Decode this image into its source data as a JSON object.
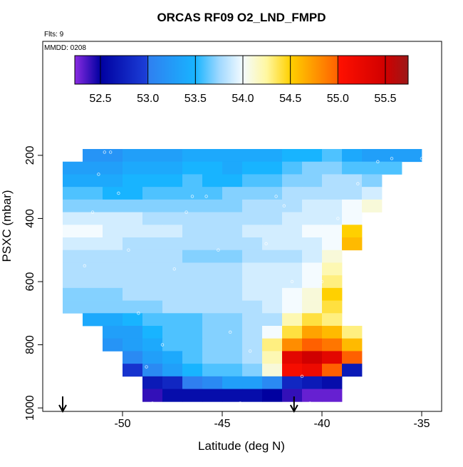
{
  "chart_data": {
    "type": "heatmap",
    "title": "ORCAS RF09 O2_LND_FMPD",
    "subtitle": "Flts: 9",
    "annotation": "MMDD: 0208",
    "x_label": "Latitude (deg N)",
    "y_label": "PSXC (mbar)",
    "xlim": [
      -54,
      -34
    ],
    "ylim": [
      1011,
      -161
    ],
    "xticks": [
      -50,
      -45,
      -40,
      -35
    ],
    "yticks": [
      200,
      400,
      600,
      800,
      1000
    ],
    "x_edges": [
      -53,
      -52,
      -51,
      -50,
      -49,
      -48,
      -47,
      -46,
      -45,
      -44,
      -43,
      -42,
      -41,
      -40,
      -39,
      -38,
      -37,
      -36,
      -35
    ],
    "y_edges": [
      180,
      220,
      260,
      300,
      340,
      380,
      420,
      460,
      500,
      540,
      580,
      620,
      660,
      700,
      740,
      780,
      820,
      860,
      900,
      940,
      980
    ],
    "z": [
      [
        null,
        53.2,
        53.2,
        53.3,
        53.3,
        53.3,
        53.4,
        53.4,
        53.4,
        53.4,
        53.4,
        53.5,
        53.5,
        53.6,
        53.4,
        53.3,
        53.3,
        53.3
      ],
      [
        53.3,
        53.3,
        53.3,
        53.4,
        53.4,
        53.4,
        53.5,
        53.5,
        53.4,
        53.5,
        53.5,
        53.6,
        53.7,
        53.7,
        53.6,
        53.6,
        53.6,
        null
      ],
      [
        53.4,
        53.4,
        53.4,
        53.5,
        53.5,
        53.5,
        53.6,
        53.5,
        53.5,
        53.6,
        53.6,
        53.7,
        53.7,
        53.8,
        53.8,
        53.7,
        null,
        null
      ],
      [
        53.6,
        53.6,
        53.5,
        53.5,
        53.6,
        53.6,
        53.6,
        53.6,
        53.7,
        53.7,
        53.7,
        53.8,
        53.8,
        53.8,
        53.8,
        53.9,
        null,
        null
      ],
      [
        53.7,
        53.7,
        53.7,
        53.7,
        53.7,
        53.7,
        53.7,
        53.7,
        53.7,
        53.8,
        53.8,
        53.8,
        53.9,
        53.9,
        54.0,
        54.1,
        null,
        null
      ],
      [
        53.9,
        53.9,
        53.9,
        53.9,
        53.8,
        53.8,
        53.8,
        53.8,
        53.8,
        53.8,
        53.8,
        53.9,
        53.9,
        53.9,
        54.0,
        null,
        null,
        null
      ],
      [
        54.0,
        54.0,
        53.9,
        53.9,
        53.9,
        53.9,
        53.8,
        53.8,
        53.8,
        53.9,
        53.9,
        53.9,
        54.0,
        54.0,
        54.5,
        null,
        null,
        null
      ],
      [
        53.9,
        53.9,
        53.9,
        53.8,
        53.8,
        53.8,
        53.8,
        53.8,
        53.8,
        53.8,
        53.9,
        53.9,
        53.9,
        54.0,
        54.6,
        null,
        null,
        null
      ],
      [
        53.8,
        53.8,
        53.8,
        53.8,
        53.8,
        53.8,
        53.7,
        53.7,
        53.7,
        53.8,
        53.8,
        53.8,
        53.9,
        54.1,
        null,
        null,
        null,
        null
      ],
      [
        53.8,
        53.8,
        53.8,
        53.8,
        53.8,
        53.8,
        53.8,
        53.8,
        53.8,
        53.9,
        53.9,
        53.9,
        54.0,
        54.2,
        null,
        null,
        null,
        null
      ],
      [
        53.8,
        53.8,
        53.8,
        53.8,
        53.8,
        53.8,
        53.8,
        53.8,
        53.8,
        53.9,
        53.9,
        53.9,
        54.0,
        54.3,
        null,
        null,
        null,
        null
      ],
      [
        53.7,
        53.7,
        53.7,
        53.8,
        53.8,
        53.8,
        53.8,
        53.8,
        53.8,
        53.9,
        53.9,
        54.0,
        54.1,
        54.5,
        null,
        null,
        null,
        null
      ],
      [
        53.7,
        53.7,
        53.7,
        53.7,
        53.7,
        53.8,
        53.8,
        53.8,
        53.8,
        53.8,
        53.9,
        54.0,
        54.1,
        54.4,
        null,
        null,
        null,
        null
      ],
      [
        null,
        53.4,
        53.4,
        53.5,
        53.6,
        53.6,
        53.6,
        53.7,
        53.7,
        53.8,
        53.8,
        54.2,
        54.4,
        54.3,
        null,
        null,
        null,
        null
      ],
      [
        null,
        null,
        53.3,
        53.3,
        53.5,
        53.6,
        53.6,
        53.7,
        53.7,
        53.8,
        54.0,
        54.4,
        54.7,
        54.6,
        54.3,
        null,
        null,
        null
      ],
      [
        null,
        null,
        53.2,
        53.3,
        53.4,
        53.6,
        53.6,
        53.7,
        53.7,
        53.8,
        54.3,
        54.8,
        55.0,
        54.9,
        54.6,
        null,
        null,
        null
      ],
      [
        null,
        null,
        null,
        53.1,
        53.3,
        53.4,
        53.6,
        53.7,
        53.7,
        53.8,
        54.2,
        55.3,
        55.5,
        55.3,
        55.0,
        null,
        null,
        null
      ],
      [
        null,
        null,
        null,
        52.9,
        53.1,
        53.3,
        53.5,
        53.6,
        53.6,
        53.7,
        54.1,
        55.1,
        55.2,
        55.0,
        52.7,
        null,
        null,
        null
      ],
      [
        null,
        null,
        null,
        null,
        52.7,
        52.8,
        53.0,
        53.1,
        53.3,
        53.3,
        53.1,
        52.8,
        52.7,
        52.6,
        null,
        null,
        null,
        null
      ],
      [
        null,
        null,
        null,
        null,
        52.4,
        52.6,
        52.6,
        52.6,
        52.6,
        52.6,
        52.5,
        52.4,
        52.3,
        52.3,
        null,
        null,
        null,
        null
      ]
    ],
    "zlim": [
      52.23,
      55.74
    ],
    "colorscale": [
      [
        52.23,
        "#8a2be2"
      ],
      [
        52.5,
        "#0000a0"
      ],
      [
        52.99,
        "#1c3fd8"
      ],
      [
        53.0,
        "#2f7ff0"
      ],
      [
        53.5,
        "#18b4ff"
      ],
      [
        53.75,
        "#9fd8ff"
      ],
      [
        54.0,
        "#f4fbff"
      ],
      [
        54.25,
        "#fff7a0"
      ],
      [
        54.5,
        "#ffd000"
      ],
      [
        55.0,
        "#ff6000"
      ],
      [
        55.01,
        "#ff1000"
      ],
      [
        55.5,
        "#d00000"
      ],
      [
        55.74,
        "#9c1818"
      ]
    ],
    "cbticks": [
      52.5,
      {
        "value": 53,
        "label": "53.0"
      },
      53.5,
      {
        "value": 54,
        "label": "54.0"
      },
      54.5,
      {
        "value": 55,
        "label": "55.0"
      },
      55.5
    ],
    "track": {
      "x": [
        -52.3,
        -51.9,
        -51.5,
        -51.2,
        -50.9,
        -50.6,
        -50.2,
        -49.7,
        -49.2,
        -48.8,
        -48.5,
        -48.0,
        -47.4,
        -46.8,
        -46.5,
        -45.8,
        -45.2,
        -44.6,
        -44.1,
        -43.6,
        -42.8,
        -42.3,
        -41.9,
        -41.5,
        -41.0,
        -40.6,
        -40.0,
        -39.2,
        -38.2,
        -37.2,
        -36.5,
        -35.0
      ],
      "y": [
        750,
        550,
        380,
        260,
        190,
        190,
        320,
        500,
        700,
        870,
        985,
        800,
        560,
        380,
        330,
        330,
        500,
        760,
        985,
        820,
        480,
        330,
        360,
        600,
        900,
        985,
        600,
        400,
        290,
        220,
        210,
        210
      ]
    },
    "arrows_x": [
      -53,
      -41.4
    ]
  }
}
